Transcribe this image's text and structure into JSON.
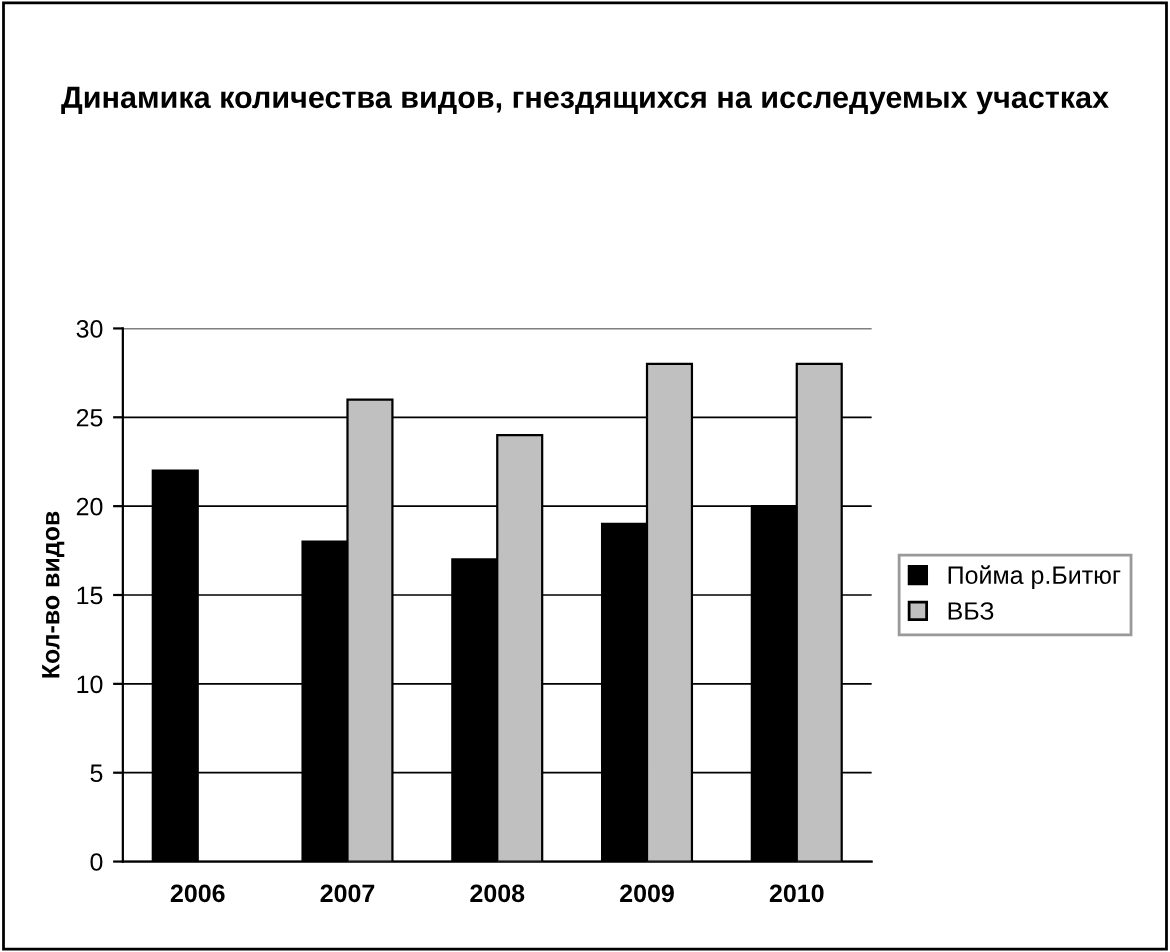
{
  "chart_data": {
    "type": "bar",
    "title": "Динамика количества видов, гнездящихся на исследуемых участках",
    "ylabel": "Кол-во видов",
    "categories": [
      "2006",
      "2007",
      "2008",
      "2009",
      "2010"
    ],
    "series": [
      {
        "name": "Пойма р.Битюг",
        "color": "#000000",
        "values": [
          22,
          18,
          17,
          19,
          20
        ]
      },
      {
        "name": "ВБЗ",
        "color": "#c0c0c0",
        "values": [
          null,
          26,
          24,
          28,
          28
        ]
      }
    ],
    "ylim": [
      0,
      30
    ],
    "yticks": [
      0,
      5,
      10,
      15,
      20,
      25,
      30
    ],
    "grid": "y",
    "legend": "right"
  }
}
